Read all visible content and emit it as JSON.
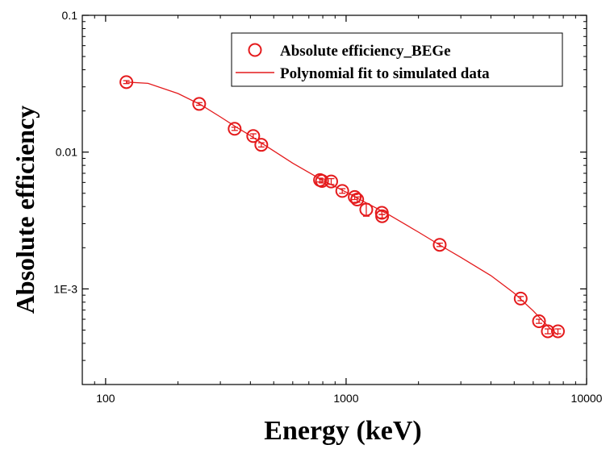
{
  "chart_data": {
    "type": "scatter",
    "title": "",
    "xlabel": "Energy (keV)",
    "ylabel": "Absolute efficiency",
    "x_scale": "log",
    "y_scale": "log",
    "xlim": [
      80,
      10000
    ],
    "ylim": [
      0.0002,
      0.1
    ],
    "x_ticks": [
      {
        "value": 100,
        "label": "100"
      },
      {
        "value": 1000,
        "label": "1000"
      },
      {
        "value": 10000,
        "label": "10000"
      }
    ],
    "y_ticks": [
      {
        "value": 0.001,
        "label": "1E-3"
      },
      {
        "value": 0.01,
        "label": "0.01"
      },
      {
        "value": 0.1,
        "label": "0.1"
      }
    ],
    "grid": false,
    "legend_position": "top-right",
    "color": "#e41a1c",
    "series": [
      {
        "name": "Absolute efficiency_BEGe",
        "kind": "scatter",
        "marker": "open-circle",
        "points": [
          {
            "x": 122,
            "y": 0.0325,
            "err": 0.0008
          },
          {
            "x": 245,
            "y": 0.0225,
            "err": 0.0005
          },
          {
            "x": 344,
            "y": 0.0148,
            "err": 0.0004
          },
          {
            "x": 411,
            "y": 0.0131,
            "err": 0.0005
          },
          {
            "x": 444,
            "y": 0.0113,
            "err": 0.0004
          },
          {
            "x": 779,
            "y": 0.00625,
            "err": 0.0002
          },
          {
            "x": 794,
            "y": 0.00615,
            "err": 0.0002
          },
          {
            "x": 867,
            "y": 0.0061,
            "err": 0.0003
          },
          {
            "x": 964,
            "y": 0.0052,
            "err": 0.0002
          },
          {
            "x": 1086,
            "y": 0.0047,
            "err": 0.0002
          },
          {
            "x": 1112,
            "y": 0.0045,
            "err": 0.0002
          },
          {
            "x": 1213,
            "y": 0.0038,
            "err": 0.0004
          },
          {
            "x": 1408,
            "y": 0.0036,
            "err": 0.0001
          },
          {
            "x": 1412,
            "y": 0.0034,
            "err": 0.0001
          },
          {
            "x": 2450,
            "y": 0.0021,
            "err": 6e-05
          },
          {
            "x": 5320,
            "y": 0.00085,
            "err": 3e-05
          },
          {
            "x": 6340,
            "y": 0.00058,
            "err": 2e-05
          },
          {
            "x": 6900,
            "y": 0.00049,
            "err": 2e-05
          },
          {
            "x": 7600,
            "y": 0.00049,
            "err": 2e-05
          }
        ]
      },
      {
        "name": "Polynomial fit to simulated data",
        "kind": "line",
        "points": [
          {
            "x": 122,
            "y": 0.0325
          },
          {
            "x": 150,
            "y": 0.0318
          },
          {
            "x": 200,
            "y": 0.0268
          },
          {
            "x": 250,
            "y": 0.0221
          },
          {
            "x": 300,
            "y": 0.0181
          },
          {
            "x": 350,
            "y": 0.0152
          },
          {
            "x": 400,
            "y": 0.0132
          },
          {
            "x": 450,
            "y": 0.0115
          },
          {
            "x": 500,
            "y": 0.0102
          },
          {
            "x": 600,
            "y": 0.0083
          },
          {
            "x": 700,
            "y": 0.0071
          },
          {
            "x": 800,
            "y": 0.0062
          },
          {
            "x": 900,
            "y": 0.0056
          },
          {
            "x": 1000,
            "y": 0.0051
          },
          {
            "x": 1200,
            "y": 0.0043
          },
          {
            "x": 1500,
            "y": 0.0035
          },
          {
            "x": 2000,
            "y": 0.0026
          },
          {
            "x": 2500,
            "y": 0.00205
          },
          {
            "x": 3000,
            "y": 0.0017
          },
          {
            "x": 4000,
            "y": 0.00125
          },
          {
            "x": 5000,
            "y": 0.00093
          },
          {
            "x": 6000,
            "y": 0.00069
          },
          {
            "x": 7000,
            "y": 0.00052
          },
          {
            "x": 7600,
            "y": 0.00046
          }
        ]
      }
    ]
  }
}
